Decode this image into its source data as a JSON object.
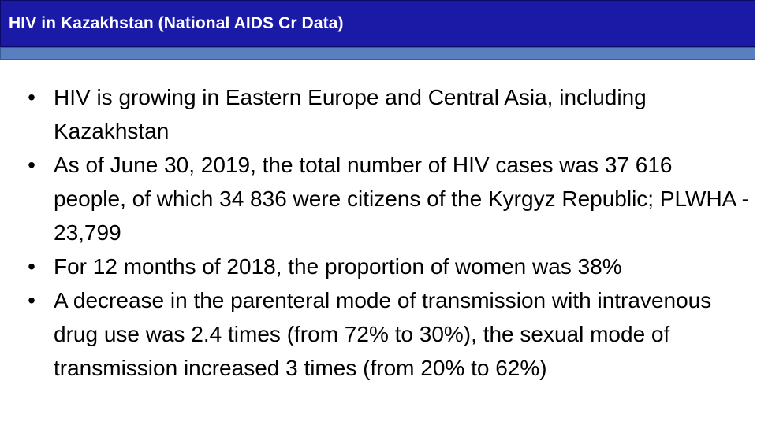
{
  "header": {
    "title": "HIV in Kazakhstan (National AIDS Cr Data)"
  },
  "content": {
    "bullet_symbol": "•",
    "bullets": [
      "HIV is growing in Eastern Europe and Central Asia, including Kazakhstan",
      "As of June 30, 2019, the total number of HIV cases was 37 616 people, of which 34 836 were citizens of the Kyrgyz Republic; PLWHA - 23,799",
      "For 12 months of 2018, the proportion of women was 38%",
      "A decrease in the parenteral mode of transmission with intravenous drug use was 2.4 times (from 72% to 30%), the sexual mode of transmission increased 3 times (from 20% to 62%)"
    ]
  },
  "colors": {
    "title_bar": "#1a1aa6",
    "sub_bar": "#5a7fc0",
    "text": "#000000"
  }
}
